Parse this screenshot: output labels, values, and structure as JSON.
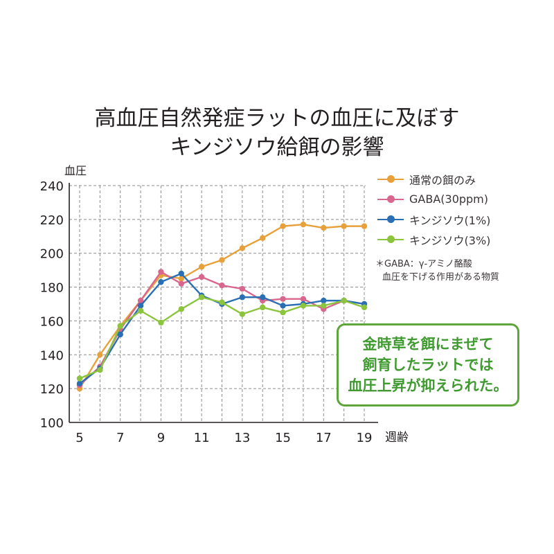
{
  "title": {
    "line1": "高血圧自然発症ラットの血圧に及ぼす",
    "line2": "キンジソウ給餌の影響"
  },
  "note": {
    "line1": "＊GABA：γ-アミノ酪酸",
    "line2": "血圧を下げる作用がある物質"
  },
  "callout": {
    "line1": "金時草を餌にまぜて",
    "line2": "飼育したラットでは",
    "line3": "血圧上昇が抑えられた。"
  },
  "chart_data": {
    "type": "line",
    "title": "高血圧自然発症ラットの血圧に及ぼす キンジソウ給餌の影響",
    "xlabel": "週齢",
    "ylabel": "血圧",
    "xlim": [
      5,
      19
    ],
    "ylim": [
      100,
      240
    ],
    "xticks": [
      "5",
      "7",
      "9",
      "11",
      "13",
      "15",
      "17",
      "19"
    ],
    "yticks": [
      "100",
      "120",
      "140",
      "160",
      "180",
      "200",
      "220",
      "240"
    ],
    "grid": true,
    "legend_position": "top-right",
    "x": [
      5,
      6,
      7,
      8,
      9,
      10,
      11,
      12,
      13,
      14,
      15,
      16,
      17,
      18,
      19
    ],
    "series": [
      {
        "name": "通常の餌のみ",
        "color": "#e8a13a",
        "values": [
          120,
          140,
          157,
          172,
          187,
          185,
          192,
          196,
          203,
          209,
          216,
          217,
          215,
          216,
          216
        ]
      },
      {
        "name": "GABA(30ppm)",
        "color": "#d9668c",
        "values": [
          122,
          133,
          155,
          172,
          189,
          182,
          186,
          181,
          179,
          172,
          173,
          173,
          167,
          172,
          170
        ]
      },
      {
        "name": "キンジソウ(1%)",
        "color": "#2a6fb3",
        "values": [
          123,
          132,
          152,
          169,
          183,
          188,
          175,
          170,
          174,
          174,
          169,
          170,
          172,
          172,
          170
        ]
      },
      {
        "name": "キンジソウ(3%)",
        "color": "#8cc43e",
        "values": [
          126,
          131,
          157,
          166,
          159,
          167,
          174,
          171,
          164,
          168,
          165,
          169,
          169,
          172,
          168
        ]
      }
    ]
  }
}
